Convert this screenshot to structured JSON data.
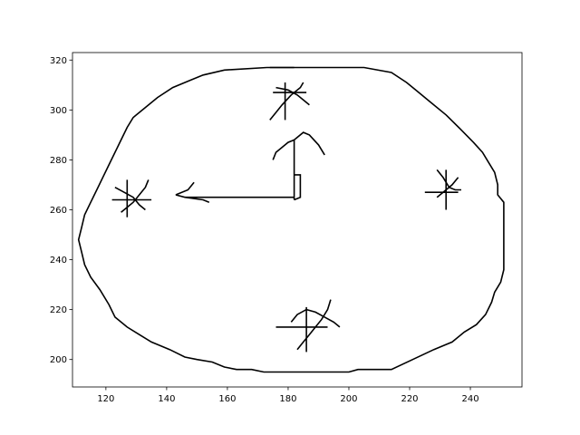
{
  "chart_data": {
    "type": "line",
    "title": "",
    "xlabel": "",
    "ylabel": "",
    "xlim": [
      109,
      257
    ],
    "ylim": [
      189,
      323
    ],
    "grid": false,
    "legend": "none",
    "line_color": "#000000",
    "x_ticks": [
      {
        "value": 120,
        "label": "120"
      },
      {
        "value": 140,
        "label": "140"
      },
      {
        "value": 160,
        "label": "160"
      },
      {
        "value": 180,
        "label": "180"
      },
      {
        "value": 200,
        "label": "200"
      },
      {
        "value": 220,
        "label": "220"
      },
      {
        "value": 240,
        "label": "240"
      }
    ],
    "y_ticks": [
      {
        "value": 200,
        "label": "200"
      },
      {
        "value": 220,
        "label": "220"
      },
      {
        "value": 240,
        "label": "240"
      },
      {
        "value": 260,
        "label": "260"
      },
      {
        "value": 280,
        "label": "280"
      },
      {
        "value": 300,
        "label": "300"
      },
      {
        "value": 320,
        "label": "320"
      }
    ],
    "strokes": [
      {
        "name": "clock-outline",
        "points": [
          [
            173,
            317
          ],
          [
            205,
            317
          ],
          [
            214,
            315
          ],
          [
            219,
            311
          ],
          [
            222,
            308
          ],
          [
            227,
            303
          ],
          [
            232,
            298
          ],
          [
            237,
            292
          ],
          [
            241,
            287
          ],
          [
            244,
            283
          ],
          [
            246,
            279
          ],
          [
            248,
            275
          ],
          [
            249,
            270
          ],
          [
            249,
            266
          ],
          [
            251,
            263
          ],
          [
            251,
            236
          ],
          [
            250,
            231
          ],
          [
            248,
            227
          ],
          [
            247,
            223
          ],
          [
            245,
            218
          ],
          [
            242,
            214
          ],
          [
            238,
            211
          ],
          [
            234,
            207
          ],
          [
            228,
            204
          ],
          [
            221,
            200
          ],
          [
            214,
            196
          ],
          [
            210,
            196
          ],
          [
            203,
            196
          ],
          [
            200,
            195
          ],
          [
            196,
            195
          ],
          [
            172,
            195
          ],
          [
            168,
            196
          ],
          [
            163,
            196
          ],
          [
            159,
            197
          ],
          [
            155,
            199
          ],
          [
            150,
            200
          ],
          [
            146,
            201
          ],
          [
            141,
            204
          ],
          [
            135,
            207
          ],
          [
            131,
            210
          ],
          [
            127,
            213
          ],
          [
            123,
            217
          ],
          [
            121,
            222
          ],
          [
            118,
            228
          ],
          [
            115,
            233
          ],
          [
            113,
            238
          ],
          [
            112,
            243
          ],
          [
            111,
            248
          ],
          [
            112,
            253
          ],
          [
            113,
            258
          ],
          [
            115,
            263
          ],
          [
            117,
            268
          ],
          [
            119,
            273
          ],
          [
            121,
            278
          ],
          [
            123,
            283
          ],
          [
            125,
            288
          ],
          [
            127,
            293
          ],
          [
            129,
            297
          ],
          [
            133,
            301
          ],
          [
            137,
            305
          ],
          [
            142,
            309
          ],
          [
            148,
            312
          ],
          [
            152,
            314
          ],
          [
            159,
            316
          ],
          [
            173,
            317
          ]
        ]
      },
      {
        "name": "top-mark-bar",
        "points": [
          [
            174,
            317
          ],
          [
            182,
            317
          ]
        ]
      },
      {
        "name": "hour-hand",
        "points": [
          [
            143,
            266
          ],
          [
            146,
            265
          ],
          [
            182,
            265
          ]
        ]
      },
      {
        "name": "hour-hand-tip",
        "points": [
          [
            143,
            266
          ],
          [
            147,
            268
          ],
          [
            149,
            271
          ]
        ]
      },
      {
        "name": "hour-hand-tail",
        "points": [
          [
            146,
            265
          ],
          [
            152,
            264
          ],
          [
            154,
            263
          ]
        ]
      },
      {
        "name": "minute-hand",
        "points": [
          [
            182,
            264
          ],
          [
            182,
            288
          ],
          [
            185,
            291
          ],
          [
            187,
            290
          ],
          [
            190,
            286
          ],
          [
            192,
            282
          ]
        ]
      },
      {
        "name": "minute-hand-left",
        "points": [
          [
            175,
            280
          ],
          [
            176,
            283
          ],
          [
            178,
            285
          ],
          [
            180,
            287
          ],
          [
            182,
            288
          ]
        ]
      },
      {
        "name": "hand-center-stem",
        "points": [
          [
            182,
            264
          ],
          [
            184,
            265
          ],
          [
            184,
            274
          ],
          [
            182,
            274
          ]
        ]
      },
      {
        "name": "mark-12-h",
        "points": [
          [
            175,
            307
          ],
          [
            186,
            307
          ]
        ]
      },
      {
        "name": "mark-12-v",
        "points": [
          [
            179,
            296
          ],
          [
            179,
            311
          ]
        ]
      },
      {
        "name": "mark-12-diag-a",
        "points": [
          [
            174,
            296
          ],
          [
            176,
            299
          ],
          [
            178,
            302
          ],
          [
            181,
            306
          ],
          [
            184,
            309
          ],
          [
            185,
            311
          ]
        ]
      },
      {
        "name": "mark-12-diag-b",
        "points": [
          [
            176,
            309
          ],
          [
            180,
            308
          ],
          [
            183,
            306
          ],
          [
            185,
            304
          ],
          [
            187,
            302
          ]
        ]
      },
      {
        "name": "mark-3-h",
        "points": [
          [
            225,
            267
          ],
          [
            236,
            267
          ]
        ]
      },
      {
        "name": "mark-3-v",
        "points": [
          [
            232,
            260
          ],
          [
            232,
            276
          ]
        ]
      },
      {
        "name": "mark-3-diag-a",
        "points": [
          [
            229,
            276
          ],
          [
            231,
            273
          ],
          [
            233,
            269
          ],
          [
            235,
            268
          ],
          [
            237,
            268
          ]
        ]
      },
      {
        "name": "mark-3-diag-b",
        "points": [
          [
            229,
            265
          ],
          [
            231,
            267
          ],
          [
            234,
            270
          ],
          [
            236,
            273
          ]
        ]
      },
      {
        "name": "mark-6-h",
        "points": [
          [
            176,
            213
          ],
          [
            193,
            213
          ]
        ]
      },
      {
        "name": "mark-6-v",
        "points": [
          [
            186,
            203
          ],
          [
            186,
            221
          ]
        ]
      },
      {
        "name": "mark-6-diag-a",
        "points": [
          [
            183,
            204
          ],
          [
            185,
            207
          ],
          [
            187,
            210
          ],
          [
            189,
            213
          ],
          [
            191,
            216
          ],
          [
            193,
            220
          ],
          [
            194,
            224
          ]
        ]
      },
      {
        "name": "mark-6-diag-b",
        "points": [
          [
            181,
            215
          ],
          [
            183,
            218
          ],
          [
            186,
            220
          ],
          [
            189,
            219
          ],
          [
            192,
            217
          ],
          [
            195,
            215
          ],
          [
            197,
            213
          ]
        ]
      },
      {
        "name": "mark-9-h",
        "points": [
          [
            122,
            264
          ],
          [
            135,
            264
          ]
        ]
      },
      {
        "name": "mark-9-v",
        "points": [
          [
            127,
            257
          ],
          [
            127,
            272
          ]
        ]
      },
      {
        "name": "mark-9-diag-a",
        "points": [
          [
            125,
            259
          ],
          [
            127,
            261
          ],
          [
            129,
            263
          ],
          [
            131,
            266
          ],
          [
            133,
            269
          ],
          [
            134,
            272
          ]
        ]
      },
      {
        "name": "mark-9-diag-b",
        "points": [
          [
            123,
            269
          ],
          [
            126,
            267
          ],
          [
            129,
            265
          ],
          [
            131,
            262
          ],
          [
            133,
            260
          ]
        ]
      }
    ]
  }
}
